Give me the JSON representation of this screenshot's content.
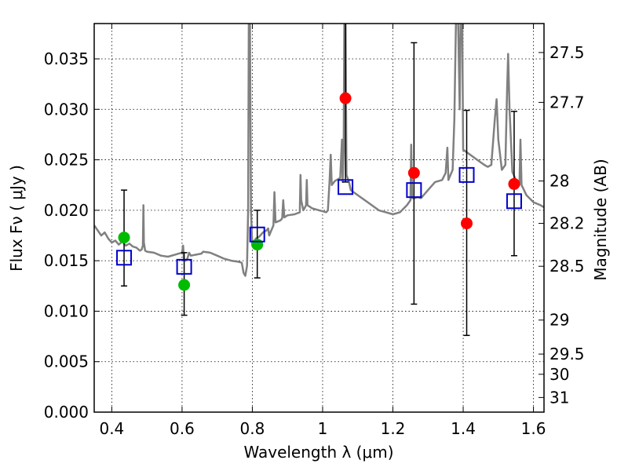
{
  "chart_data": {
    "type": "scatter",
    "xlabel": "Wavelength  λ (μm)",
    "ylabel_left": "Flux  Fν  ( μJy )",
    "ylabel_right": "Magnitude (AB)",
    "xlim": [
      0.35,
      1.63
    ],
    "ylim": [
      0.0,
      0.0385
    ],
    "grid": true,
    "x_ticks": [
      {
        "value": 0.4,
        "label": "0.4"
      },
      {
        "value": 0.6,
        "label": "0.6"
      },
      {
        "value": 0.8,
        "label": "0.8"
      },
      {
        "value": 1.0,
        "label": "1"
      },
      {
        "value": 1.2,
        "label": "1.2"
      },
      {
        "value": 1.4,
        "label": "1.4"
      },
      {
        "value": 1.6,
        "label": "1.6"
      }
    ],
    "y_ticks": [
      {
        "value": 0.0,
        "label": "0.000"
      },
      {
        "value": 0.005,
        "label": "0.005"
      },
      {
        "value": 0.01,
        "label": "0.010"
      },
      {
        "value": 0.015,
        "label": "0.015"
      },
      {
        "value": 0.02,
        "label": "0.020"
      },
      {
        "value": 0.025,
        "label": "0.025"
      },
      {
        "value": 0.03,
        "label": "0.030"
      },
      {
        "value": 0.035,
        "label": "0.035"
      }
    ],
    "magnitude_ticks": [
      {
        "flux": 0.03563,
        "label": "27.5"
      },
      {
        "flux": 0.03069,
        "label": "27.7"
      },
      {
        "flux": 0.0229,
        "label": "28"
      },
      {
        "flux": 0.0187,
        "label": "28.2"
      },
      {
        "flux": 0.01445,
        "label": "28.5"
      },
      {
        "flux": 0.00912,
        "label": "29"
      },
      {
        "flux": 0.00575,
        "label": "29.5"
      },
      {
        "flux": 0.00375,
        "label": "30"
      },
      {
        "flux": 0.00145,
        "label": "31"
      }
    ],
    "observed_flux": [
      {
        "x": 0.435,
        "y": 0.0173,
        "err_low": 0.0125,
        "err_high": 0.022,
        "color": "#00bb00"
      },
      {
        "x": 0.606,
        "y": 0.0126,
        "err_low": 0.0096,
        "err_high": 0.0158,
        "color": "#00bb00"
      },
      {
        "x": 0.814,
        "y": 0.0166,
        "err_low": 0.0133,
        "err_high": 0.02,
        "color": "#00bb00"
      },
      {
        "x": 1.065,
        "y": 0.0311,
        "err_low": 0.0228,
        "err_high": 0.0395,
        "color": "#ff0000"
      },
      {
        "x": 1.26,
        "y": 0.0237,
        "err_low": 0.0107,
        "err_high": 0.0366,
        "color": "#ff0000"
      },
      {
        "x": 1.41,
        "y": 0.0187,
        "err_low": 0.0076,
        "err_high": 0.0299,
        "color": "#ff0000"
      },
      {
        "x": 1.545,
        "y": 0.0226,
        "err_low": 0.0155,
        "err_high": 0.0298,
        "color": "#ff0000"
      }
    ],
    "model_flux": [
      {
        "x": 0.435,
        "y": 0.0153
      },
      {
        "x": 0.606,
        "y": 0.0144
      },
      {
        "x": 0.814,
        "y": 0.0176
      },
      {
        "x": 1.065,
        "y": 0.0223
      },
      {
        "x": 1.26,
        "y": 0.022
      },
      {
        "x": 1.41,
        "y": 0.0235
      },
      {
        "x": 1.545,
        "y": 0.0209
      }
    ],
    "model_square_color": "#0000cc",
    "spectrum_color": "#808080",
    "spectrum": [
      [
        0.35,
        0.0185
      ],
      [
        0.36,
        0.018
      ],
      [
        0.37,
        0.0175
      ],
      [
        0.38,
        0.0178
      ],
      [
        0.39,
        0.0172
      ],
      [
        0.4,
        0.0168
      ],
      [
        0.41,
        0.017
      ],
      [
        0.42,
        0.0166
      ],
      [
        0.43,
        0.0169
      ],
      [
        0.44,
        0.0165
      ],
      [
        0.45,
        0.0167
      ],
      [
        0.46,
        0.0164
      ],
      [
        0.47,
        0.0163
      ],
      [
        0.48,
        0.016
      ],
      [
        0.485,
        0.0161
      ],
      [
        0.4885,
        0.0165
      ],
      [
        0.49,
        0.0205
      ],
      [
        0.4915,
        0.0168
      ],
      [
        0.495,
        0.016
      ],
      [
        0.5,
        0.0159
      ],
      [
        0.52,
        0.0158
      ],
      [
        0.54,
        0.0155
      ],
      [
        0.56,
        0.0154
      ],
      [
        0.58,
        0.0156
      ],
      [
        0.59,
        0.0157
      ],
      [
        0.6,
        0.0158
      ],
      [
        0.603,
        0.0165
      ],
      [
        0.605,
        0.0152
      ],
      [
        0.61,
        0.015
      ],
      [
        0.615,
        0.0152
      ],
      [
        0.62,
        0.0158
      ],
      [
        0.625,
        0.0155
      ],
      [
        0.64,
        0.0156
      ],
      [
        0.655,
        0.0157
      ],
      [
        0.66,
        0.0159
      ],
      [
        0.68,
        0.0158
      ],
      [
        0.7,
        0.0155
      ],
      [
        0.72,
        0.0152
      ],
      [
        0.74,
        0.015
      ],
      [
        0.76,
        0.0149
      ],
      [
        0.77,
        0.0148
      ],
      [
        0.775,
        0.0138
      ],
      [
        0.78,
        0.0135
      ],
      [
        0.785,
        0.0145
      ],
      [
        0.788,
        0.02
      ],
      [
        0.79,
        0.04
      ],
      [
        0.793,
        0.04
      ],
      [
        0.796,
        0.02
      ],
      [
        0.8,
        0.0165
      ],
      [
        0.81,
        0.0172
      ],
      [
        0.82,
        0.0174
      ],
      [
        0.83,
        0.0178
      ],
      [
        0.84,
        0.018
      ],
      [
        0.845,
        0.0182
      ],
      [
        0.848,
        0.0175
      ],
      [
        0.86,
        0.0185
      ],
      [
        0.863,
        0.0218
      ],
      [
        0.866,
        0.0188
      ],
      [
        0.88,
        0.019
      ],
      [
        0.885,
        0.0192
      ],
      [
        0.888,
        0.021
      ],
      [
        0.891,
        0.0193
      ],
      [
        0.9,
        0.0195
      ],
      [
        0.92,
        0.0196
      ],
      [
        0.935,
        0.0198
      ],
      [
        0.937,
        0.0235
      ],
      [
        0.939,
        0.021
      ],
      [
        0.945,
        0.02
      ],
      [
        0.95,
        0.0203
      ],
      [
        0.953,
        0.0205
      ],
      [
        0.955,
        0.023
      ],
      [
        0.957,
        0.0205
      ],
      [
        0.97,
        0.0202
      ],
      [
        0.99,
        0.02
      ],
      [
        1.0,
        0.0199
      ],
      [
        1.01,
        0.0198
      ],
      [
        1.015,
        0.02
      ],
      [
        1.02,
        0.023
      ],
      [
        1.023,
        0.0255
      ],
      [
        1.026,
        0.0225
      ],
      [
        1.035,
        0.0229
      ],
      [
        1.05,
        0.0232
      ],
      [
        1.055,
        0.027
      ],
      [
        1.057,
        0.0228
      ],
      [
        1.06,
        0.026
      ],
      [
        1.062,
        0.04
      ],
      [
        1.065,
        0.04
      ],
      [
        1.068,
        0.0235
      ],
      [
        1.075,
        0.0228
      ],
      [
        1.08,
        0.022
      ],
      [
        1.1,
        0.0215
      ],
      [
        1.12,
        0.021
      ],
      [
        1.14,
        0.0205
      ],
      [
        1.16,
        0.02
      ],
      [
        1.18,
        0.0198
      ],
      [
        1.2,
        0.0196
      ],
      [
        1.22,
        0.0198
      ],
      [
        1.24,
        0.0205
      ],
      [
        1.25,
        0.021
      ],
      [
        1.252,
        0.0265
      ],
      [
        1.255,
        0.0212
      ],
      [
        1.262,
        0.0212
      ],
      [
        1.27,
        0.0213
      ],
      [
        1.28,
        0.0212
      ],
      [
        1.3,
        0.022
      ],
      [
        1.32,
        0.0228
      ],
      [
        1.34,
        0.023
      ],
      [
        1.35,
        0.0237
      ],
      [
        1.355,
        0.0262
      ],
      [
        1.358,
        0.023
      ],
      [
        1.37,
        0.024
      ],
      [
        1.375,
        0.029
      ],
      [
        1.38,
        0.04
      ],
      [
        1.385,
        0.04
      ],
      [
        1.39,
        0.03
      ],
      [
        1.393,
        0.04
      ],
      [
        1.397,
        0.04
      ],
      [
        1.4,
        0.026
      ],
      [
        1.42,
        0.0255
      ],
      [
        1.44,
        0.025
      ],
      [
        1.46,
        0.0245
      ],
      [
        1.47,
        0.0243
      ],
      [
        1.48,
        0.0245
      ],
      [
        1.49,
        0.029
      ],
      [
        1.495,
        0.031
      ],
      [
        1.5,
        0.027
      ],
      [
        1.51,
        0.024
      ],
      [
        1.52,
        0.0245
      ],
      [
        1.525,
        0.032
      ],
      [
        1.528,
        0.0355
      ],
      [
        1.532,
        0.03
      ],
      [
        1.54,
        0.0238
      ],
      [
        1.55,
        0.023
      ],
      [
        1.56,
        0.0225
      ],
      [
        1.563,
        0.027
      ],
      [
        1.566,
        0.0225
      ],
      [
        1.58,
        0.0215
      ],
      [
        1.6,
        0.0208
      ],
      [
        1.62,
        0.0205
      ],
      [
        1.63,
        0.0203
      ]
    ]
  }
}
